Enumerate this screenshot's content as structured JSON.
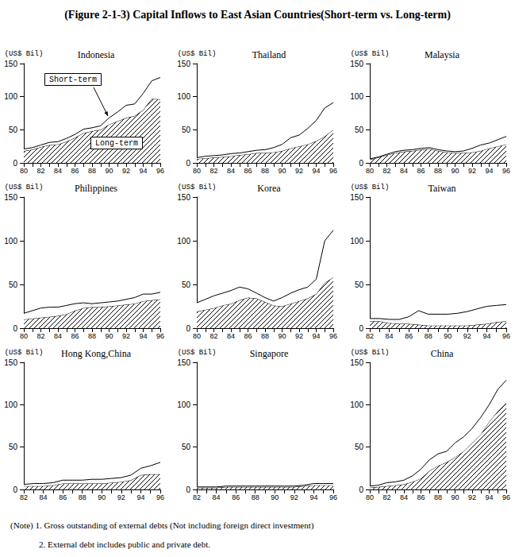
{
  "title": "(Figure 2-1-3) Capital Inflows to East Asian Countries(Short-term vs. Long-term)",
  "notes": [
    "(Note) 1. Gross outstanding of external debts (Not including foreign direct investment)",
    "2. External debt includes public and private debt."
  ],
  "chart_data": [
    {
      "type": "area",
      "title": "Indonesia",
      "ylabel": "(US$ Bil)",
      "categories": [
        "80",
        null,
        "82",
        null,
        "84",
        null,
        "86",
        null,
        "88",
        null,
        "90",
        null,
        "92",
        null,
        "94",
        null,
        "96"
      ],
      "series": [
        {
          "name": "Long-term",
          "color": "#000000",
          "values": [
            18,
            20,
            24,
            27,
            28,
            32,
            38,
            45,
            48,
            50,
            58,
            63,
            68,
            71,
            80,
            97,
            96
          ]
        },
        {
          "name": "Short-term",
          "color": "#ffffff",
          "values": [
            3,
            3,
            3,
            4,
            4,
            5,
            5,
            6,
            5,
            6,
            10,
            14,
            19,
            18,
            25,
            27,
            33
          ]
        }
      ],
      "annotations": [
        {
          "text": "Short-term"
        },
        {
          "text": "Long-term"
        }
      ],
      "ylim": [
        0,
        150
      ],
      "yticks": [
        0,
        50,
        100,
        150
      ],
      "stacked": true,
      "grid": false
    },
    {
      "type": "area",
      "title": "Thailand",
      "ylabel": "(US$ Bil)",
      "categories": [
        "80",
        null,
        "82",
        null,
        "84",
        null,
        "86",
        null,
        "88",
        null,
        "90",
        null,
        "92",
        null,
        "94",
        null,
        "96"
      ],
      "series": [
        {
          "name": "Long-term",
          "color": "#000000",
          "values": [
            6,
            7,
            8,
            9,
            10,
            12,
            13,
            15,
            15,
            16,
            18,
            22,
            25,
            28,
            33,
            40,
            50
          ]
        },
        {
          "name": "Short-term",
          "color": "#ffffff",
          "values": [
            2,
            3,
            3,
            3,
            4,
            3,
            4,
            4,
            5,
            7,
            10,
            16,
            17,
            24,
            31,
            43,
            41
          ]
        }
      ],
      "ylim": [
        0,
        150
      ],
      "yticks": [
        0,
        50,
        100,
        150
      ],
      "stacked": true,
      "grid": false
    },
    {
      "type": "area",
      "title": "Malaysia",
      "ylabel": "(US$ Bil)",
      "categories": [
        "80",
        null,
        "82",
        null,
        "84",
        null,
        "86",
        null,
        "88",
        null,
        "90",
        null,
        "92",
        null,
        "94",
        null,
        "96"
      ],
      "series": [
        {
          "name": "Long-term",
          "color": "#000000",
          "values": [
            5,
            8,
            12,
            15,
            17,
            18,
            20,
            21,
            18,
            16,
            15,
            15,
            16,
            18,
            22,
            25,
            28
          ]
        },
        {
          "name": "Short-term",
          "color": "#ffffff",
          "values": [
            1,
            1,
            1,
            2,
            2,
            2,
            2,
            2,
            2,
            2,
            2,
            3,
            6,
            9,
            8,
            10,
            12
          ]
        }
      ],
      "ylim": [
        0,
        150
      ],
      "yticks": [
        0,
        50,
        100,
        150
      ],
      "stacked": true,
      "grid": false
    },
    {
      "type": "area",
      "title": "Philippines",
      "ylabel": "(US$ Bil)",
      "categories": [
        "80",
        null,
        "82",
        null,
        "84",
        null,
        "86",
        null,
        "88",
        null,
        "90",
        null,
        "92",
        null,
        "94",
        null,
        "96"
      ],
      "series": [
        {
          "name": "Long-term",
          "color": "#000000",
          "values": [
            10,
            11,
            12,
            13,
            14,
            16,
            20,
            23,
            24,
            24,
            25,
            26,
            27,
            28,
            31,
            32,
            33
          ]
        },
        {
          "name": "Short-term",
          "color": "#ffffff",
          "values": [
            7,
            9,
            11,
            11,
            10,
            10,
            8,
            6,
            4,
            5,
            5,
            5,
            6,
            7,
            8,
            7,
            8
          ]
        }
      ],
      "ylim": [
        0,
        150
      ],
      "yticks": [
        0,
        50,
        100,
        150
      ],
      "stacked": true,
      "grid": false
    },
    {
      "type": "area",
      "title": "Korea",
      "ylabel": "(US$ Bil)",
      "categories": [
        "80",
        null,
        "82",
        null,
        "84",
        null,
        "86",
        null,
        "88",
        null,
        "90",
        null,
        "92",
        null,
        "94",
        null,
        "96"
      ],
      "series": [
        {
          "name": "Long-term",
          "color": "#000000",
          "values": [
            19,
            21,
            23,
            26,
            28,
            32,
            35,
            34,
            30,
            26,
            25,
            28,
            31,
            34,
            39,
            52,
            58
          ]
        },
        {
          "name": "Short-term",
          "color": "#ffffff",
          "values": [
            10,
            12,
            14,
            14,
            15,
            15,
            10,
            6,
            5,
            5,
            10,
            12,
            13,
            13,
            17,
            48,
            54
          ]
        }
      ],
      "ylim": [
        0,
        150
      ],
      "yticks": [
        0,
        50,
        100,
        150
      ],
      "stacked": true,
      "grid": false
    },
    {
      "type": "area",
      "title": "Taiwan",
      "ylabel": "(US$ Bil)",
      "categories": [
        "82",
        null,
        "84",
        null,
        "86",
        null,
        "88",
        null,
        "90",
        null,
        "92",
        null,
        "94",
        null,
        "96"
      ],
      "series": [
        {
          "name": "Long-term",
          "color": "#000000",
          "values": [
            8,
            8,
            6,
            5,
            5,
            4,
            3,
            3,
            3,
            3,
            3,
            4,
            5,
            7,
            8
          ]
        },
        {
          "name": "Short-term",
          "color": "#ffffff",
          "values": [
            3,
            3,
            4,
            5,
            8,
            16,
            13,
            13,
            13,
            14,
            16,
            18,
            20,
            19,
            19
          ]
        }
      ],
      "ylim": [
        0,
        150
      ],
      "yticks": [
        0,
        50,
        100,
        150
      ],
      "stacked": true,
      "grid": false
    },
    {
      "type": "area",
      "title": "Hong Kong,China",
      "ylabel": "(US$ Bil)",
      "categories": [
        "82",
        null,
        "84",
        null,
        "86",
        null,
        "88",
        null,
        "90",
        null,
        "92",
        null,
        "94",
        null,
        "96"
      ],
      "series": [
        {
          "name": "Long-term",
          "color": "#000000",
          "values": [
            4,
            4,
            4,
            5,
            7,
            7,
            7,
            7,
            7,
            8,
            9,
            11,
            17,
            18,
            18
          ]
        },
        {
          "name": "Short-term",
          "color": "#ffffff",
          "values": [
            2,
            3,
            3,
            3,
            4,
            4,
            4,
            5,
            5,
            5,
            5,
            6,
            8,
            10,
            14
          ]
        }
      ],
      "ylim": [
        0,
        150
      ],
      "yticks": [
        0,
        50,
        100,
        150
      ],
      "stacked": true,
      "grid": false
    },
    {
      "type": "area",
      "title": "Singapore",
      "ylabel": "(US$ Bil)",
      "categories": [
        "82",
        null,
        "84",
        null,
        "86",
        null,
        "88",
        null,
        "90",
        null,
        "92",
        null,
        "94",
        null,
        "96"
      ],
      "series": [
        {
          "name": "Long-term",
          "color": "#000000",
          "values": [
            2,
            2,
            2,
            3,
            3,
            3,
            3,
            3,
            3,
            3,
            3,
            4,
            5,
            5,
            5
          ]
        },
        {
          "name": "Short-term",
          "color": "#ffffff",
          "values": [
            1,
            1,
            1,
            1,
            1,
            1,
            1,
            1,
            1,
            1,
            1,
            1,
            2,
            2,
            2
          ]
        }
      ],
      "ylim": [
        0,
        150
      ],
      "yticks": [
        0,
        50,
        100,
        150
      ],
      "stacked": true,
      "grid": false
    },
    {
      "type": "area",
      "title": "China",
      "ylabel": "(US$ Bil)",
      "categories": [
        "80",
        null,
        "82",
        null,
        "84",
        null,
        "86",
        null,
        "88",
        null,
        "90",
        null,
        "92",
        null,
        "94",
        null,
        "96"
      ],
      "series": [
        {
          "name": "Long-term",
          "color": "#000000",
          "values": [
            2,
            3,
            4,
            5,
            6,
            9,
            13,
            22,
            28,
            32,
            38,
            45,
            55,
            65,
            80,
            92,
            102
          ]
        },
        {
          "name": "Short-term",
          "color": "#ffffff",
          "values": [
            2,
            2,
            4,
            4,
            5,
            7,
            11,
            13,
            14,
            13,
            17,
            17,
            17,
            20,
            20,
            26,
            27
          ]
        }
      ],
      "ylim": [
        0,
        150
      ],
      "yticks": [
        0,
        50,
        100,
        150
      ],
      "stacked": true,
      "grid": false
    }
  ]
}
